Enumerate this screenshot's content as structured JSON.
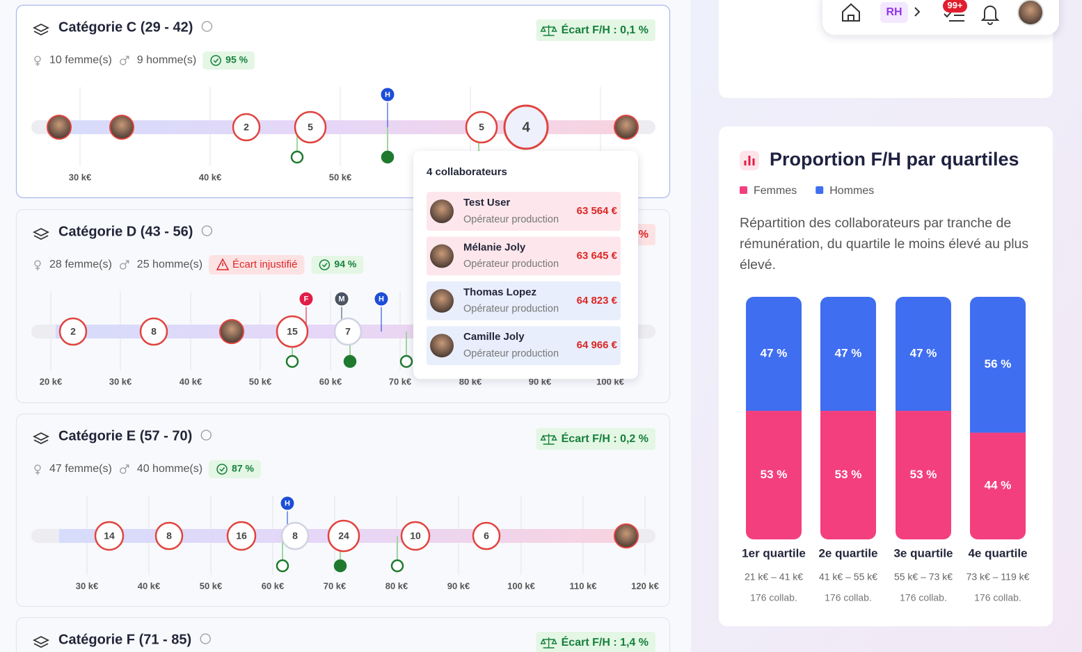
{
  "nav": {
    "role": "RH",
    "tasks_badge": "99+"
  },
  "categories": [
    {
      "title": "Catégorie C (29 - 42)",
      "women": "10 femme(s)",
      "men": "9 homme(s)",
      "score": "95 %",
      "gap": "Écart F/H : 0,1 %",
      "axis": [
        "30 k€",
        "40 k€",
        "50 k€"
      ],
      "bubbles": [
        "2",
        "5",
        "5",
        "4"
      ],
      "pins": [
        "H"
      ]
    },
    {
      "title": "Catégorie D (43 - 56)",
      "women": "28 femme(s)",
      "men": "25 homme(s)",
      "alert": "Écart injustifié",
      "score": "94 %",
      "gap": "%",
      "axis": [
        "20 k€",
        "30 k€",
        "40 k€",
        "50 k€",
        "60 k€",
        "70 k€",
        "80 k€",
        "90 k€",
        "100 k€"
      ],
      "bubbles": [
        "2",
        "8",
        "15",
        "7"
      ],
      "pins": [
        "F",
        "M",
        "H"
      ]
    },
    {
      "title": "Catégorie E (57 - 70)",
      "women": "47 femme(s)",
      "men": "40 homme(s)",
      "score": "87 %",
      "gap": "Écart F/H : 0,2 %",
      "axis": [
        "30 k€",
        "40 k€",
        "50 k€",
        "60 k€",
        "70 k€",
        "80 k€",
        "90 k€",
        "100 k€",
        "110 k€",
        "120 k€"
      ],
      "bubbles": [
        "14",
        "8",
        "16",
        "8",
        "24",
        "10",
        "6"
      ],
      "pins": [
        "H"
      ]
    },
    {
      "title": "Catégorie F (71 - 85)",
      "gap": "Écart F/H : 1,4 %"
    }
  ],
  "tooltip": {
    "title": "4 collaborateurs",
    "people": [
      {
        "name": "Test User",
        "role": "Opérateur production",
        "salary": "63 564 €"
      },
      {
        "name": "Mélanie Joly",
        "role": "Opérateur production",
        "salary": "63 645 €"
      },
      {
        "name": "Thomas Lopez",
        "role": "Opérateur production",
        "salary": "64 823 €"
      },
      {
        "name": "Camille Joly",
        "role": "Opérateur production",
        "salary": "64 966 €"
      }
    ]
  },
  "chart_data": {
    "type": "bar",
    "stacked": true,
    "title": "Proportion F/H par quartiles",
    "description": "Répartition des collaborateurs par tranche de rémunération, du quartile le moins élevé au plus élevé.",
    "categories": [
      "1er quartile",
      "2e quartile",
      "3e quartile",
      "4e quartile"
    ],
    "ranges": [
      "21 k€ – 41 k€",
      "41 k€ – 55 k€",
      "55 k€ – 73 k€",
      "73 k€ – 119 k€"
    ],
    "counts": [
      "176 collab.",
      "176 collab.",
      "176 collab.",
      "176 collab."
    ],
    "ylim": [
      0,
      100
    ],
    "series": [
      {
        "name": "Femmes",
        "color": "#f43f7f",
        "values": [
          53,
          53,
          53,
          44
        ],
        "value_labels": [
          "53 %",
          "53 %",
          "53 %",
          "44 %"
        ]
      },
      {
        "name": "Hommes",
        "color": "#3f6ef0",
        "values": [
          47,
          47,
          47,
          56
        ],
        "value_labels": [
          "47 %",
          "47 %",
          "47 %",
          "56 %"
        ]
      }
    ]
  }
}
